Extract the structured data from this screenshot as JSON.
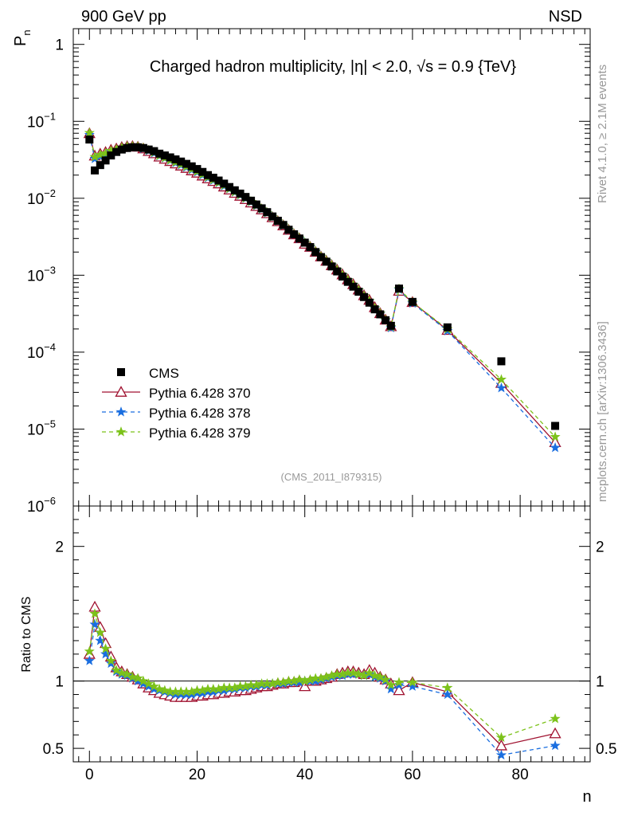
{
  "header": {
    "left": "900 GeV pp",
    "right": "NSD"
  },
  "side_labels": {
    "upper": "Rivet 4.1.0, ≥ 2.1M events",
    "lower": "mcplots.cern.ch [arXiv:1306.3436]"
  },
  "chart_data": {
    "type": "scatter",
    "title": "Charged hadron multiplicity, |η| < 2.0, √s = 0.9 {TeV}",
    "analysis_id": "(CMS_2011_I879315)",
    "xlabel": "n",
    "ylabel_main": "P",
    "ylabel_main_sub": "n",
    "ylabel_ratio": "Ratio to CMS",
    "x_range": [
      -3,
      93
    ],
    "y_range_main": [
      1e-06,
      1.6
    ],
    "y_range_ratio": [
      0.4,
      2.3
    ],
    "x_ticks": [
      0,
      20,
      40,
      60,
      80
    ],
    "y_ticks_main": [
      {
        "v": 1,
        "m": "1",
        "e": ""
      },
      {
        "v": 0.1,
        "m": "10",
        "e": "−1"
      },
      {
        "v": 0.01,
        "m": "10",
        "e": "−2"
      },
      {
        "v": 0.001,
        "m": "10",
        "e": "−3"
      },
      {
        "v": 0.0001,
        "m": "10",
        "e": "−4"
      },
      {
        "v": 1e-05,
        "m": "10",
        "e": "−5"
      },
      {
        "v": 1e-06,
        "m": "10",
        "e": "−6"
      }
    ],
    "y_ticks_ratio": [
      0.5,
      1,
      2
    ],
    "x": [
      0,
      1,
      2,
      3,
      4,
      5,
      6,
      7,
      8,
      9,
      10,
      11,
      12,
      13,
      14,
      15,
      16,
      17,
      18,
      19,
      20,
      21,
      22,
      23,
      24,
      25,
      26,
      27,
      28,
      29,
      30,
      31,
      32,
      33,
      34,
      35,
      36,
      37,
      38,
      39,
      40,
      41,
      42,
      43,
      44,
      45,
      46,
      47,
      48,
      49,
      50,
      51,
      52,
      53,
      54,
      55,
      56,
      57.5,
      60,
      66.5,
      76.5,
      86.5
    ],
    "cms": [
      0.058,
      0.023,
      0.027,
      0.031,
      0.036,
      0.04,
      0.043,
      0.045,
      0.046,
      0.046,
      0.045,
      0.043,
      0.041,
      0.038,
      0.036,
      0.034,
      0.032,
      0.03,
      0.028,
      0.026,
      0.024,
      0.022,
      0.02,
      0.0185,
      0.017,
      0.0155,
      0.014,
      0.0127,
      0.0115,
      0.0104,
      0.0093,
      0.0083,
      0.0074,
      0.0066,
      0.0058,
      0.0051,
      0.0045,
      0.0039,
      0.0034,
      0.003,
      0.00265,
      0.00232,
      0.002,
      0.00172,
      0.0015,
      0.0013,
      0.00112,
      0.00096,
      0.00082,
      0.00071,
      0.00061,
      0.00052,
      0.00044,
      0.00036,
      0.00031,
      0.00026,
      0.00022,
      0.00067,
      0.00045,
      0.00021,
      7.6e-05,
      1.1e-05
    ],
    "series": [
      {
        "name": "Pythia 6.428 370",
        "color": "#a01230",
        "marker": "triangle-open",
        "dash": "",
        "ratio": [
          1.2,
          1.55,
          1.4,
          1.28,
          1.18,
          1.1,
          1.07,
          1.05,
          1.03,
          1.01,
          0.98,
          0.95,
          0.93,
          0.91,
          0.9,
          0.89,
          0.88,
          0.88,
          0.88,
          0.88,
          0.89,
          0.89,
          0.9,
          0.9,
          0.91,
          0.91,
          0.92,
          0.92,
          0.93,
          0.93,
          0.94,
          0.95,
          0.96,
          0.96,
          0.97,
          0.98,
          0.98,
          0.99,
          0.99,
          1.0,
          0.96,
          1.0,
          1.0,
          1.01,
          1.02,
          1.03,
          1.05,
          1.06,
          1.07,
          1.07,
          1.06,
          1.05,
          1.08,
          1.06,
          1.03,
          1.01,
          0.98,
          0.93,
          0.99,
          0.92,
          0.52,
          0.61
        ]
      },
      {
        "name": "Pythia 6.428 378",
        "color": "#1a6ee0",
        "marker": "star",
        "dash": "5,4",
        "ratio": [
          1.15,
          1.42,
          1.3,
          1.2,
          1.13,
          1.07,
          1.05,
          1.04,
          1.02,
          1.0,
          0.98,
          0.96,
          0.94,
          0.93,
          0.92,
          0.91,
          0.9,
          0.9,
          0.9,
          0.9,
          0.91,
          0.91,
          0.92,
          0.92,
          0.93,
          0.93,
          0.94,
          0.94,
          0.95,
          0.95,
          0.96,
          0.96,
          0.97,
          0.97,
          0.98,
          0.98,
          0.98,
          0.99,
          0.99,
          0.99,
          1.0,
          1.0,
          1.0,
          1.01,
          1.02,
          1.03,
          1.04,
          1.04,
          1.05,
          1.05,
          1.05,
          1.04,
          1.05,
          1.03,
          1.02,
          1.0,
          0.94,
          0.97,
          0.96,
          0.9,
          0.45,
          0.52
        ]
      },
      {
        "name": "Pythia 6.428 379",
        "color": "#7cc21a",
        "marker": "star",
        "dash": "5,4",
        "ratio": [
          1.22,
          1.5,
          1.36,
          1.24,
          1.15,
          1.08,
          1.06,
          1.05,
          1.03,
          1.02,
          1.0,
          0.98,
          0.96,
          0.94,
          0.93,
          0.92,
          0.92,
          0.92,
          0.92,
          0.92,
          0.93,
          0.93,
          0.94,
          0.94,
          0.94,
          0.95,
          0.95,
          0.95,
          0.96,
          0.96,
          0.97,
          0.97,
          0.98,
          0.98,
          0.98,
          0.99,
          0.99,
          1.0,
          1.0,
          1.01,
          1.0,
          1.01,
          1.02,
          1.02,
          1.03,
          1.04,
          1.05,
          1.05,
          1.06,
          1.06,
          1.05,
          1.04,
          1.06,
          1.04,
          1.03,
          1.01,
          0.97,
          0.99,
          0.99,
          0.95,
          0.58,
          0.72
        ]
      }
    ],
    "legend_position": "middle-left"
  }
}
